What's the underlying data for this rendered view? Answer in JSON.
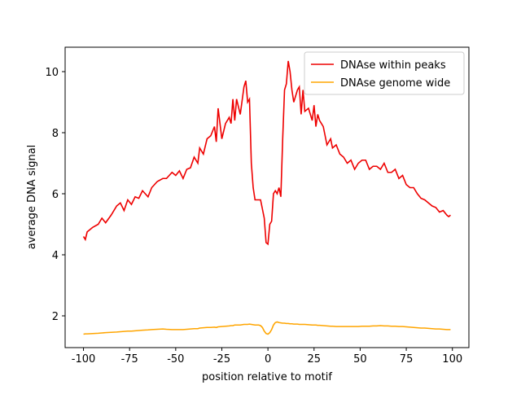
{
  "chart_data": {
    "type": "line",
    "xlabel": "position relative to motif",
    "ylabel": "average DNA signal",
    "x": [
      -100,
      -99,
      -98,
      -95,
      -92,
      -90,
      -88,
      -85,
      -82,
      -80,
      -78,
      -76,
      -74,
      -72,
      -70,
      -68,
      -65,
      -63,
      -60,
      -57,
      -55,
      -52,
      -50,
      -48,
      -46,
      -44,
      -42,
      -40,
      -38,
      -37,
      -35,
      -33,
      -31,
      -29,
      -28,
      -27,
      -25,
      -23,
      -21,
      -20,
      -19,
      -18,
      -17,
      -15,
      -13,
      -12,
      -11,
      -10,
      -9,
      -8,
      -7,
      -5,
      -4,
      -3,
      -2,
      -1,
      0,
      1,
      2,
      3,
      4,
      5,
      6,
      7,
      8,
      9,
      10,
      11,
      12,
      13,
      14,
      15,
      16,
      17,
      18,
      19,
      20,
      22,
      24,
      25,
      26,
      27,
      28,
      30,
      32,
      34,
      35,
      37,
      39,
      41,
      43,
      45,
      47,
      49,
      51,
      53,
      55,
      57,
      59,
      61,
      63,
      65,
      67,
      69,
      71,
      73,
      75,
      77,
      79,
      81,
      83,
      85,
      87,
      89,
      91,
      93,
      95,
      97,
      98,
      99
    ],
    "series": [
      {
        "name": "DNAse within peaks",
        "color": "#ee0000",
        "values": [
          4.6,
          4.5,
          4.75,
          4.9,
          5.0,
          5.2,
          5.05,
          5.3,
          5.6,
          5.7,
          5.45,
          5.8,
          5.65,
          5.9,
          5.85,
          6.1,
          5.9,
          6.2,
          6.4,
          6.5,
          6.5,
          6.7,
          6.6,
          6.75,
          6.5,
          6.8,
          6.85,
          7.2,
          7.0,
          7.5,
          7.3,
          7.8,
          7.9,
          8.2,
          7.7,
          8.8,
          7.8,
          8.3,
          8.5,
          8.3,
          9.1,
          8.4,
          9.1,
          8.6,
          9.5,
          9.7,
          9.0,
          9.1,
          7.0,
          6.2,
          5.8,
          5.8,
          5.8,
          5.5,
          5.2,
          4.4,
          4.35,
          5.0,
          5.1,
          6.0,
          6.1,
          6.0,
          6.2,
          5.9,
          7.8,
          9.4,
          9.6,
          10.35,
          10.0,
          9.4,
          9.0,
          9.2,
          9.4,
          9.5,
          8.6,
          9.4,
          8.7,
          8.8,
          8.4,
          8.9,
          8.2,
          8.6,
          8.4,
          8.2,
          7.6,
          7.8,
          7.5,
          7.6,
          7.3,
          7.2,
          7.0,
          7.1,
          6.8,
          7.0,
          7.1,
          7.1,
          6.8,
          6.9,
          6.9,
          6.8,
          7.0,
          6.7,
          6.7,
          6.8,
          6.5,
          6.6,
          6.3,
          6.2,
          6.2,
          6.0,
          5.85,
          5.8,
          5.7,
          5.6,
          5.55,
          5.4,
          5.45,
          5.3,
          5.25,
          5.3
        ]
      },
      {
        "name": "DNAse genome wide",
        "color": "#ffa500",
        "values": [
          1.4,
          1.41,
          1.41,
          1.42,
          1.43,
          1.44,
          1.45,
          1.46,
          1.47,
          1.48,
          1.49,
          1.5,
          1.5,
          1.51,
          1.52,
          1.53,
          1.54,
          1.55,
          1.56,
          1.57,
          1.56,
          1.55,
          1.55,
          1.55,
          1.55,
          1.56,
          1.57,
          1.58,
          1.58,
          1.6,
          1.61,
          1.62,
          1.62,
          1.63,
          1.62,
          1.64,
          1.65,
          1.66,
          1.67,
          1.68,
          1.68,
          1.7,
          1.7,
          1.7,
          1.72,
          1.72,
          1.72,
          1.73,
          1.72,
          1.71,
          1.7,
          1.7,
          1.68,
          1.62,
          1.5,
          1.42,
          1.4,
          1.45,
          1.55,
          1.7,
          1.78,
          1.8,
          1.78,
          1.77,
          1.76,
          1.76,
          1.75,
          1.75,
          1.74,
          1.74,
          1.73,
          1.73,
          1.73,
          1.72,
          1.72,
          1.72,
          1.72,
          1.71,
          1.7,
          1.7,
          1.7,
          1.69,
          1.69,
          1.68,
          1.67,
          1.66,
          1.66,
          1.65,
          1.65,
          1.65,
          1.65,
          1.65,
          1.65,
          1.65,
          1.66,
          1.66,
          1.66,
          1.67,
          1.67,
          1.68,
          1.67,
          1.67,
          1.66,
          1.66,
          1.65,
          1.65,
          1.64,
          1.63,
          1.62,
          1.61,
          1.6,
          1.6,
          1.59,
          1.58,
          1.57,
          1.57,
          1.56,
          1.55,
          1.55,
          1.55
        ]
      }
    ],
    "xlim": [
      -109.95,
      108.95
    ],
    "xticks": [
      -100,
      -75,
      -50,
      -25,
      0,
      25,
      50,
      75,
      100
    ],
    "ylim": [
      0.96,
      10.8
    ],
    "yticks": [
      2,
      4,
      6,
      8,
      10
    ],
    "legend": "upper right"
  }
}
